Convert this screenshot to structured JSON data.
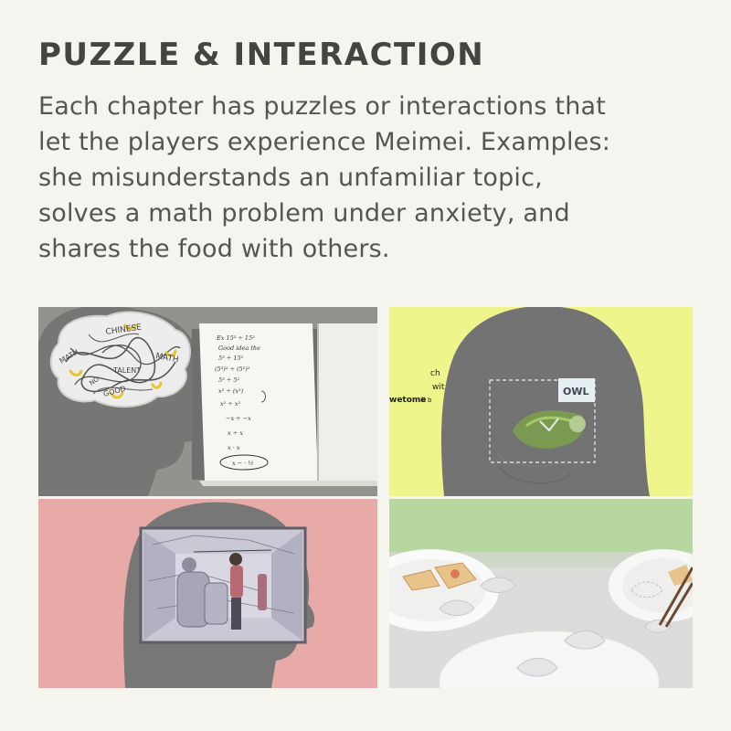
{
  "header": {
    "title": "PUZZLE & INTERACTION"
  },
  "description": {
    "line1": "Each chapter has puzzles or interactions that",
    "line2": "let the players experience Meimei. Examples:",
    "line3": "she misunderstands an unfamiliar topic,",
    "line4": "solves a math problem under anxiety, and",
    "line5": "shares the food with others."
  },
  "panels": {
    "brain": {
      "words": [
        "CHINESE",
        "MATH",
        "MATH",
        "TALENT",
        "NO",
        "GOOD"
      ]
    },
    "notebook": {
      "lines": [
        "Ex 15³ ÷ 15²",
        "Good idea the",
        "5³ ÷ 15²",
        "(5³)² ÷ (5²)²",
        "5³ ÷ 5²",
        "x² ÷ (x²)",
        "x² ÷ x²",
        "−x ÷ −x",
        "x ÷ x",
        "x · x",
        "x − · ½"
      ]
    },
    "owl": {
      "label": "OWL",
      "fragments": [
        "ch",
        "wit",
        "wetome",
        "ill b"
      ]
    }
  },
  "colors": {
    "background": "#f5f4ef",
    "title": "#444442",
    "text": "#555553",
    "head_silhouette": "#737373",
    "owl_bg": "#eef58a",
    "pink_bg": "#e7aaa6",
    "green_bg": "#b7d7a0"
  }
}
